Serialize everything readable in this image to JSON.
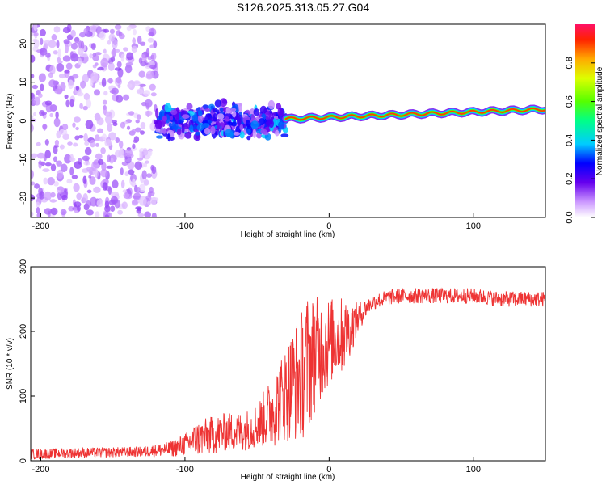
{
  "figure_title": "S126.2025.313.05.27.G04",
  "chart_data": [
    {
      "type": "heatmap",
      "title": "S126.2025.313.05.27.G04",
      "xlabel": "Height of straight line (km)",
      "ylabel": "Frequency (Hz)",
      "xlim": [
        -207,
        150
      ],
      "ylim": [
        -25,
        25
      ],
      "xticks": [
        -200,
        -100,
        0,
        100
      ],
      "yticks": [
        -20,
        -10,
        0,
        10,
        20
      ],
      "colorbar": {
        "label": "Normalized spectral amplitude",
        "range": [
          0,
          1
        ],
        "ticks": [
          "0.0",
          "0.2",
          "0.4",
          "0.6",
          "0.8"
        ],
        "tick_values": [
          0,
          0.2,
          0.4,
          0.6,
          0.8
        ]
      },
      "features": [
        {
          "description": "scattered noise",
          "x_range": [
            -207,
            -120
          ],
          "freq_range": [
            -25,
            25
          ],
          "amplitude": 0.1
        },
        {
          "description": "clustered signal",
          "x_range": [
            -120,
            -30
          ],
          "freq_range": [
            -7,
            5
          ],
          "amplitude": 0.25
        },
        {
          "description": "narrow carrier",
          "x_range": [
            -30,
            150
          ],
          "freq_center": [
            0.5,
            3
          ],
          "amplitude": 0.9
        }
      ]
    },
    {
      "type": "line",
      "xlabel": "Height of straight line (km)",
      "ylabel": "SNR (10 * v/v)",
      "xlim": [
        -207,
        150
      ],
      "ylim": [
        0,
        300
      ],
      "xticks": [
        -200,
        -100,
        0,
        100
      ],
      "yticks": [
        0,
        100,
        200,
        300
      ],
      "series": [
        {
          "name": "SNR",
          "color": "#ee3333",
          "x": [
            -207,
            -180,
            -150,
            -130,
            -110,
            -100,
            -90,
            -80,
            -70,
            -60,
            -50,
            -40,
            -30,
            -25,
            -20,
            -15,
            -10,
            -5,
            0,
            5,
            10,
            15,
            20,
            25,
            30,
            40,
            50,
            60,
            80,
            100,
            120,
            150
          ],
          "y": [
            10,
            12,
            13,
            14,
            18,
            25,
            35,
            40,
            45,
            45,
            55,
            75,
            105,
            120,
            130,
            150,
            165,
            175,
            185,
            190,
            195,
            205,
            220,
            235,
            245,
            252,
            255,
            255,
            255,
            255,
            250,
            250
          ],
          "noise": [
            8,
            8,
            8,
            8,
            12,
            18,
            28,
            30,
            30,
            30,
            35,
            55,
            75,
            90,
            100,
            110,
            90,
            80,
            70,
            60,
            60,
            40,
            25,
            15,
            12,
            12,
            12,
            12,
            12,
            12,
            12,
            12
          ]
        }
      ]
    }
  ]
}
